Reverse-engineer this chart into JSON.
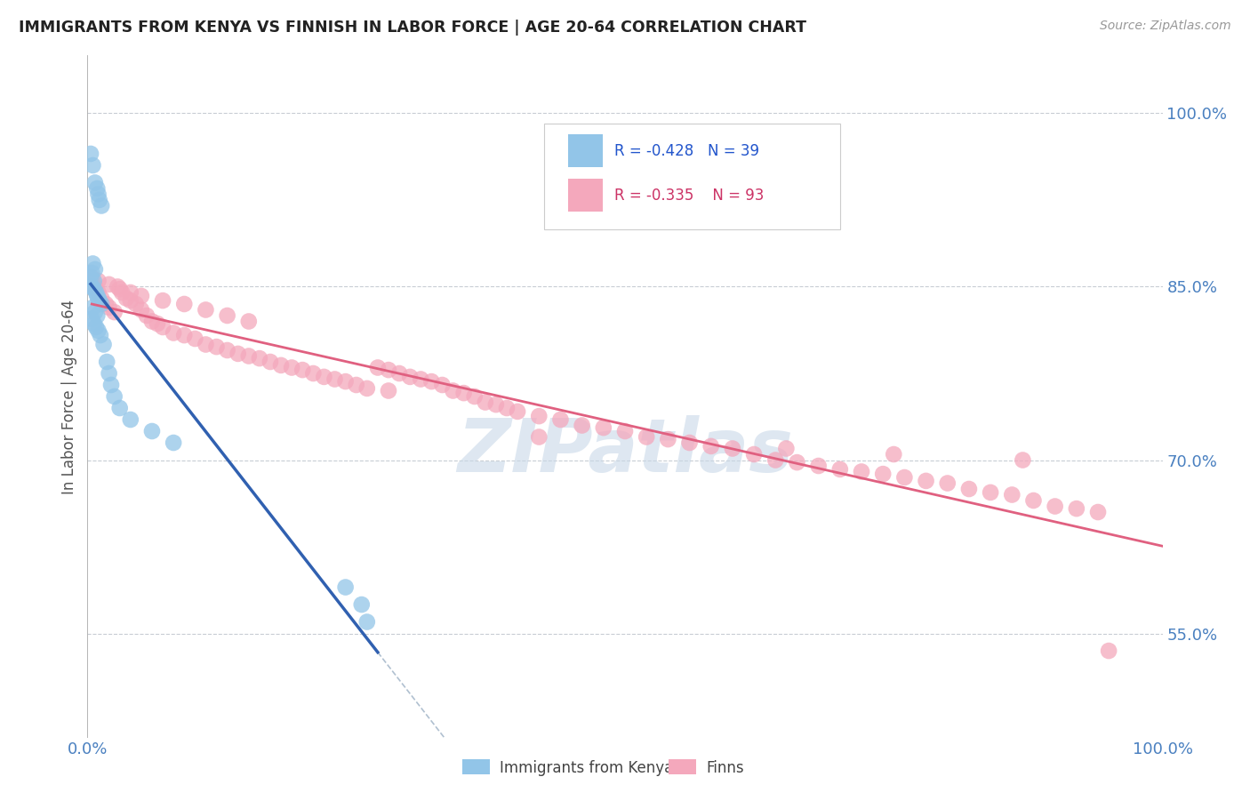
{
  "title": "IMMIGRANTS FROM KENYA VS FINNISH IN LABOR FORCE | AGE 20-64 CORRELATION CHART",
  "source": "Source: ZipAtlas.com",
  "ylabel": "In Labor Force | Age 20-64",
  "xlim": [
    0.0,
    1.0
  ],
  "ylim": [
    0.46,
    1.05
  ],
  "x_tick_labels": [
    "0.0%",
    "100.0%"
  ],
  "y_tick_labels": [
    "55.0%",
    "70.0%",
    "85.0%",
    "100.0%"
  ],
  "y_tick_positions": [
    0.55,
    0.7,
    0.85,
    1.0
  ],
  "legend_blue_label": "Immigrants from Kenya",
  "legend_pink_label": "Finns",
  "R_blue": -0.428,
  "N_blue": 39,
  "R_pink": -0.335,
  "N_pink": 93,
  "blue_color": "#92C5E8",
  "pink_color": "#F4A8BC",
  "blue_line_color": "#3060B0",
  "pink_line_color": "#E06080",
  "dashed_line_color": "#B0C0D0",
  "watermark_color": "#C8D8E8",
  "blue_scatter_x": [
    0.005,
    0.007,
    0.004,
    0.003,
    0.006,
    0.004,
    0.006,
    0.008,
    0.009,
    0.01,
    0.011,
    0.013,
    0.005,
    0.007,
    0.009,
    0.004,
    0.006,
    0.008,
    0.01,
    0.012,
    0.007,
    0.009,
    0.01,
    0.011,
    0.013,
    0.015,
    0.018,
    0.02,
    0.022,
    0.025,
    0.03,
    0.04,
    0.06,
    0.08,
    0.003,
    0.005,
    0.24,
    0.255,
    0.26
  ],
  "blue_scatter_y": [
    0.87,
    0.865,
    0.862,
    0.858,
    0.855,
    0.85,
    0.848,
    0.845,
    0.842,
    0.84,
    0.838,
    0.835,
    0.832,
    0.828,
    0.825,
    0.822,
    0.818,
    0.815,
    0.812,
    0.808,
    0.94,
    0.935,
    0.93,
    0.925,
    0.92,
    0.8,
    0.785,
    0.775,
    0.765,
    0.755,
    0.745,
    0.735,
    0.725,
    0.715,
    0.965,
    0.955,
    0.59,
    0.575,
    0.56
  ],
  "pink_scatter_x": [
    0.004,
    0.007,
    0.01,
    0.013,
    0.017,
    0.02,
    0.025,
    0.028,
    0.032,
    0.036,
    0.04,
    0.045,
    0.05,
    0.055,
    0.06,
    0.065,
    0.07,
    0.08,
    0.09,
    0.1,
    0.11,
    0.12,
    0.13,
    0.14,
    0.15,
    0.16,
    0.17,
    0.18,
    0.19,
    0.2,
    0.21,
    0.22,
    0.23,
    0.24,
    0.25,
    0.26,
    0.27,
    0.28,
    0.29,
    0.3,
    0.31,
    0.32,
    0.33,
    0.34,
    0.35,
    0.36,
    0.37,
    0.38,
    0.39,
    0.4,
    0.42,
    0.44,
    0.46,
    0.48,
    0.5,
    0.52,
    0.54,
    0.56,
    0.58,
    0.6,
    0.62,
    0.64,
    0.66,
    0.68,
    0.7,
    0.72,
    0.74,
    0.76,
    0.78,
    0.8,
    0.82,
    0.84,
    0.86,
    0.88,
    0.9,
    0.92,
    0.94,
    0.01,
    0.02,
    0.03,
    0.04,
    0.05,
    0.07,
    0.09,
    0.11,
    0.13,
    0.15,
    0.28,
    0.42,
    0.65,
    0.75,
    0.87,
    0.95
  ],
  "pink_scatter_y": [
    0.858,
    0.85,
    0.845,
    0.84,
    0.835,
    0.832,
    0.828,
    0.85,
    0.845,
    0.84,
    0.838,
    0.835,
    0.83,
    0.825,
    0.82,
    0.818,
    0.815,
    0.81,
    0.808,
    0.805,
    0.8,
    0.798,
    0.795,
    0.792,
    0.79,
    0.788,
    0.785,
    0.782,
    0.78,
    0.778,
    0.775,
    0.772,
    0.77,
    0.768,
    0.765,
    0.762,
    0.78,
    0.778,
    0.775,
    0.772,
    0.77,
    0.768,
    0.765,
    0.76,
    0.758,
    0.755,
    0.75,
    0.748,
    0.745,
    0.742,
    0.738,
    0.735,
    0.73,
    0.728,
    0.725,
    0.72,
    0.718,
    0.715,
    0.712,
    0.71,
    0.705,
    0.7,
    0.698,
    0.695,
    0.692,
    0.69,
    0.688,
    0.685,
    0.682,
    0.68,
    0.675,
    0.672,
    0.67,
    0.665,
    0.66,
    0.658,
    0.655,
    0.855,
    0.852,
    0.848,
    0.845,
    0.842,
    0.838,
    0.835,
    0.83,
    0.825,
    0.82,
    0.76,
    0.72,
    0.71,
    0.705,
    0.7,
    0.535
  ],
  "blue_line_x_start": 0.003,
  "blue_line_x_end": 0.27,
  "pink_line_x_start": 0.004,
  "pink_line_x_end": 1.0,
  "dashed_line_x_start": 0.27,
  "dashed_line_x_end": 1.0
}
